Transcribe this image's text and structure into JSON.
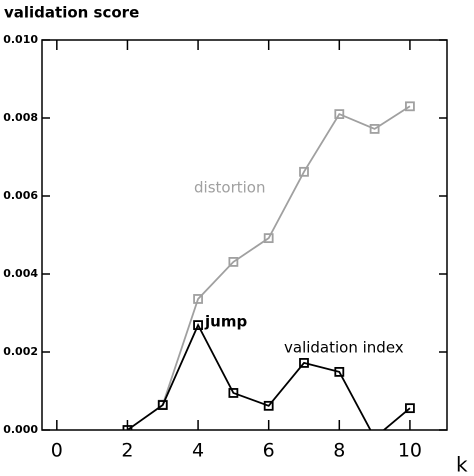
{
  "chart_data": {
    "type": "line",
    "title": "validation score",
    "xlabel": "k",
    "annotations": [
      "validation index"
    ],
    "xlim": [
      -0.42,
      11.05
    ],
    "xticks": [
      0,
      2,
      4,
      6,
      8,
      10
    ],
    "ylim": [
      0,
      0.01
    ],
    "yticks": [
      {
        "value": 0,
        "label": "0.000"
      },
      {
        "value": 0.002,
        "label": "0.002"
      },
      {
        "value": 0.004,
        "label": "0.004"
      },
      {
        "value": 0.006,
        "label": "0.006"
      },
      {
        "value": 0.008,
        "label": "0.008"
      },
      {
        "value": 0.01,
        "label": "0.010"
      }
    ],
    "series": [
      {
        "name": "distortion",
        "color": "#a0a0a0",
        "x": [
          3,
          4,
          5,
          6,
          7,
          8,
          9,
          10
        ],
        "values": [
          0.00065,
          0.00336,
          0.00431,
          0.00492,
          0.00662,
          0.0081,
          0.00772,
          0.0083
        ]
      },
      {
        "name": "jump",
        "color": "#000000",
        "x": [
          2,
          3,
          4,
          5,
          6,
          7,
          8,
          9,
          10
        ],
        "values": [
          0.0,
          0.00064,
          0.00269,
          0.00095,
          0.00062,
          0.00172,
          0.00149,
          -0.0002,
          0.00056
        ]
      }
    ]
  }
}
